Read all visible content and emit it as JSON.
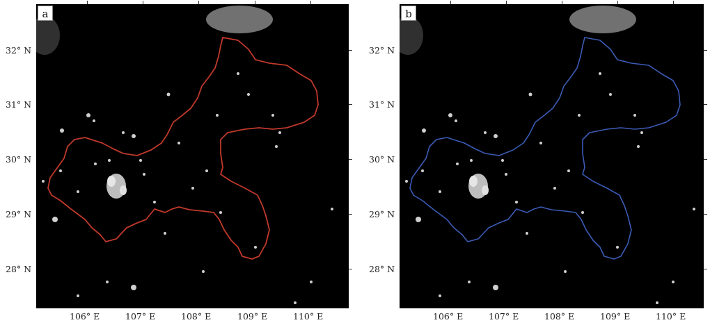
{
  "panels": [
    {
      "id": "a",
      "label": "a",
      "boundary_color": "#c0392b"
    },
    {
      "id": "b",
      "label": "b",
      "boundary_color": "#3b5bb5"
    }
  ],
  "latitude_labels": [
    "32° N",
    "31° N",
    "30° N",
    "29° N",
    "28° N"
  ],
  "longitude_labels": [
    "106° E",
    "107° E",
    "108° E",
    "109° E",
    "110° E"
  ],
  "colors": {
    "background": "#000000",
    "city_lights": "#d9d9d9",
    "cloud": "#9a9a9a"
  }
}
